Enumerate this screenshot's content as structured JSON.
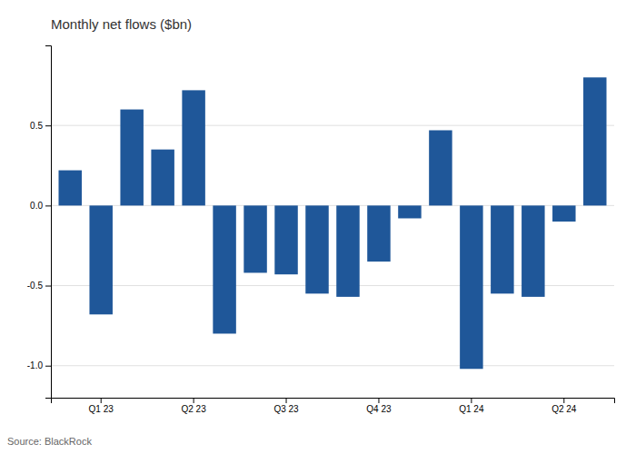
{
  "chart_data": {
    "type": "bar",
    "title": "Monthly net flows ($bn)",
    "annotations": [
      "Source: BlackRock"
    ],
    "categories": [
      null,
      "Q1 23",
      null,
      null,
      "Q2 23",
      null,
      null,
      "Q3 23",
      null,
      null,
      "Q4 23",
      null,
      null,
      "Q1 24",
      null,
      null,
      "Q2 24",
      null
    ],
    "values": [
      0.22,
      -0.68,
      0.6,
      0.35,
      0.72,
      -0.8,
      -0.42,
      -0.43,
      -0.55,
      -0.57,
      -0.35,
      -0.08,
      0.47,
      -1.02,
      -0.55,
      -0.57,
      -0.1,
      0.8
    ],
    "color": "#1f5799",
    "ylim": [
      -1.2,
      1.0
    ],
    "yticks": [
      {
        "value": -1.0,
        "label": "-1.0"
      },
      -0.5,
      {
        "value": 0.0,
        "label": "0.0"
      },
      0.5
    ],
    "grid": true
  }
}
